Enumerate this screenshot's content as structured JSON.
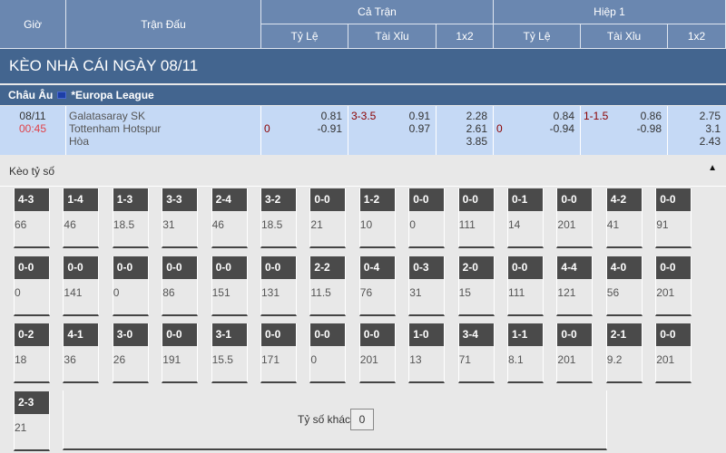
{
  "header": {
    "gio": "Giờ",
    "tran_dau": "Trận Đấu",
    "ca_tran": "Cả Trận",
    "hiep1": "Hiệp 1",
    "ty_le": "Tỷ Lệ",
    "tai_xiu": "Tài Xỉu",
    "x12": "1x2"
  },
  "title": "KÈO NHÀ CÁI NGÀY 08/11",
  "league": {
    "region": "Châu Âu",
    "name": "*Europa League",
    "flag_icon": "eu-flag-icon"
  },
  "match": {
    "date": "08/11",
    "time": "00:45",
    "home": "Galatasaray SK",
    "away": "Tottenham Hotspur",
    "draw": "Hòa",
    "full": {
      "hcp_line": "0",
      "hcp_home": "0.81",
      "hcp_away": "-0.91",
      "ou_line": "3-3.5",
      "ou_over": "0.91",
      "ou_under": "0.97",
      "x1": "2.28",
      "x2": "2.61",
      "xx": "3.85"
    },
    "half": {
      "hcp_line": "0",
      "hcp_home": "0.84",
      "hcp_away": "-0.94",
      "ou_line": "1-1.5",
      "ou_over": "0.86",
      "ou_under": "-0.98",
      "x1": "2.75",
      "x2": "3.1",
      "xx": "2.43"
    }
  },
  "correct_score": {
    "label": "Kèo tỷ số",
    "collapse_icon": "triangle-up-icon",
    "items": [
      [
        "4-3",
        "66"
      ],
      [
        "1-4",
        "46"
      ],
      [
        "1-3",
        "18.5"
      ],
      [
        "3-3",
        "31"
      ],
      [
        "2-4",
        "46"
      ],
      [
        "3-2",
        "18.5"
      ],
      [
        "0-0",
        "21"
      ],
      [
        "1-2",
        "10"
      ],
      [
        "0-0",
        "0"
      ],
      [
        "0-0",
        "111"
      ],
      [
        "0-1",
        "14"
      ],
      [
        "0-0",
        "201"
      ],
      [
        "4-2",
        "41"
      ],
      [
        "0-0",
        "91"
      ],
      [
        "0-0",
        "0"
      ],
      [
        "0-0",
        "141"
      ],
      [
        "0-0",
        "0"
      ],
      [
        "0-0",
        "86"
      ],
      [
        "0-0",
        "151"
      ],
      [
        "0-0",
        "131"
      ],
      [
        "2-2",
        "11.5"
      ],
      [
        "0-4",
        "76"
      ],
      [
        "0-3",
        "31"
      ],
      [
        "2-0",
        "15"
      ],
      [
        "0-0",
        "111"
      ],
      [
        "4-4",
        "121"
      ],
      [
        "4-0",
        "56"
      ],
      [
        "0-0",
        "201"
      ],
      [
        "0-2",
        "18"
      ],
      [
        "4-1",
        "36"
      ],
      [
        "3-0",
        "26"
      ],
      [
        "0-0",
        "191"
      ],
      [
        "3-1",
        "15.5"
      ],
      [
        "0-0",
        "171"
      ],
      [
        "0-0",
        "0"
      ],
      [
        "0-0",
        "201"
      ],
      [
        "1-0",
        "13"
      ],
      [
        "3-4",
        "71"
      ],
      [
        "1-1",
        "8.1"
      ],
      [
        "0-0",
        "201"
      ],
      [
        "2-1",
        "9.2"
      ],
      [
        "0-0",
        "201"
      ],
      [
        "2-3",
        "21"
      ]
    ],
    "other_label": "Tỷ số khác",
    "other_value": "0"
  }
}
